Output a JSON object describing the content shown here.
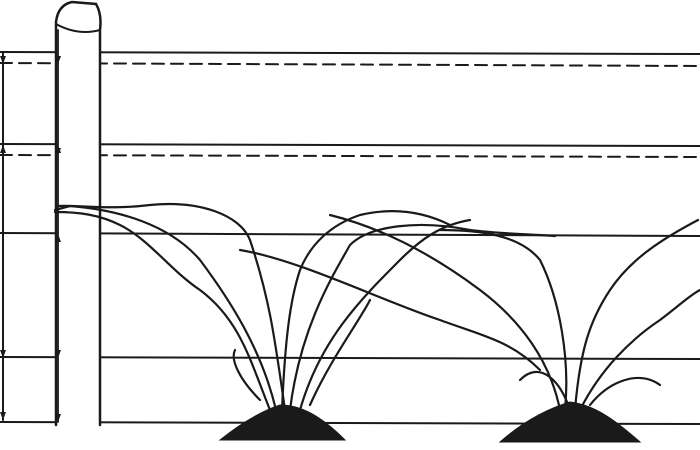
{
  "colors": {
    "background": "#ffffff",
    "ink": "#1a1a1a"
  },
  "figure": {
    "subject": "trellis-with-grapevines",
    "wires": [
      {
        "style": "solid"
      },
      {
        "style": "dashed"
      },
      {
        "style": "solid"
      },
      {
        "style": "dashed"
      },
      {
        "style": "solid"
      },
      {
        "style": "solid"
      },
      {
        "style": "solid"
      }
    ],
    "plants": 2
  }
}
